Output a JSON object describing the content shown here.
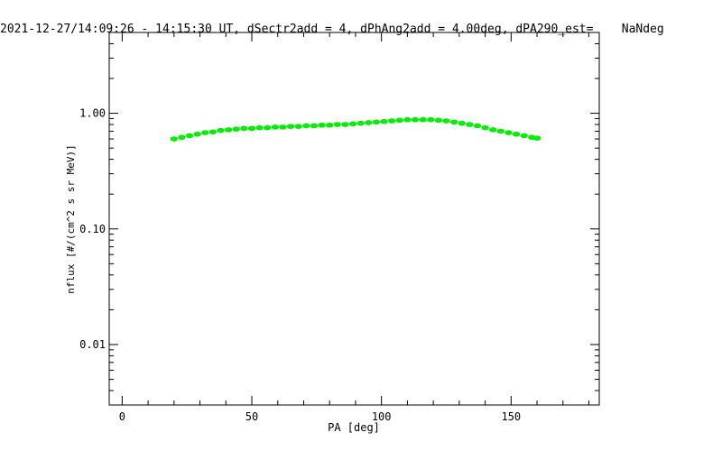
{
  "chart_data": {
    "type": "scatter",
    "title": "2021-12-27/14:09:26 - 14:15:30 UT, dSectr2add = 4, dPhAng2add = 4.00deg, dPA290_est=    NaNdeg",
    "xlabel": "PA [deg]",
    "ylabel": "nflux [#/(cm^2 s sr MeV)]",
    "xlim": [
      -5,
      184
    ],
    "ylim": [
      0.003,
      5
    ],
    "y_scale": "log",
    "x_ticks": [
      0,
      50,
      100,
      150
    ],
    "x_tick_labels": [
      "0",
      "50",
      "100",
      "150"
    ],
    "y_ticks": [
      0.01,
      0.1,
      1.0
    ],
    "y_tick_labels": [
      "0.01",
      "0.10",
      "1.00"
    ],
    "grid": false,
    "series": [
      {
        "color": "#00ee00",
        "x": [
          20,
          23,
          26,
          29,
          32,
          35,
          38,
          41,
          44,
          47,
          50,
          53,
          56,
          59,
          62,
          65,
          68,
          71,
          74,
          77,
          80,
          83,
          86,
          89,
          92,
          95,
          98,
          101,
          104,
          107,
          110,
          113,
          116,
          119,
          122,
          125,
          128,
          131,
          134,
          137,
          140,
          143,
          146,
          149,
          152,
          155,
          158,
          160
        ],
        "y": [
          0.6,
          0.62,
          0.64,
          0.66,
          0.68,
          0.69,
          0.71,
          0.72,
          0.73,
          0.74,
          0.74,
          0.75,
          0.75,
          0.76,
          0.76,
          0.77,
          0.77,
          0.78,
          0.78,
          0.79,
          0.79,
          0.8,
          0.8,
          0.81,
          0.82,
          0.83,
          0.84,
          0.85,
          0.86,
          0.87,
          0.88,
          0.88,
          0.88,
          0.88,
          0.87,
          0.86,
          0.84,
          0.82,
          0.8,
          0.78,
          0.75,
          0.72,
          0.7,
          0.68,
          0.66,
          0.64,
          0.62,
          0.61
        ]
      }
    ]
  }
}
